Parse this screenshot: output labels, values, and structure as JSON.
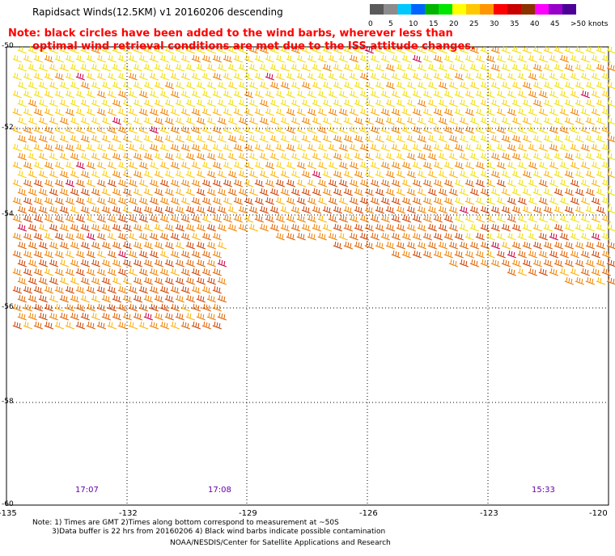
{
  "title": "Rapidsact Winds(12.5KM) v1 20160206 descending",
  "note_line1": "Note: black circles have been added to the wind barbs, wherever less than",
  "note_line2": "optimal wind retrieval conditions are met due to the ISS attitude changes.",
  "legend": {
    "unit": "knots",
    "labels": [
      "0",
      "5",
      "10",
      "15",
      "20",
      "25",
      "30",
      "35",
      "40",
      "45",
      ">50 knots"
    ],
    "colors": [
      "#5a5a5a",
      "#8c8c8c",
      "#00c8ff",
      "#0064ff",
      "#00b400",
      "#00e600",
      "#ffff00",
      "#ffc800",
      "#ff9600",
      "#ff0000",
      "#c80000",
      "#8c3200",
      "#ff00ff",
      "#9600c8",
      "#4b0096"
    ]
  },
  "latitudes": [
    "-50",
    "-52",
    "-54",
    "-56",
    "-58",
    "-60"
  ],
  "longitudes": [
    "-135",
    "-132",
    "-129",
    "-126",
    "-123",
    "-120"
  ],
  "pass_times": [
    "17:07",
    "17:08",
    "15:33"
  ],
  "footnotes": {
    "line1": "Note: 1) Times are GMT 2)Times along bottom correspond to measurement at ~50S",
    "line2": "3)Data buffer is 22 hrs from 20160206 4) Black wind barbs indicate possible contamination",
    "credit": "NOAA/NESDIS/Center for Satellite Applications and Research"
  },
  "barb_colors": [
    "#f0e000",
    "#ffd000",
    "#ffb000",
    "#f08000",
    "#e06000",
    "#d04000",
    "#cc0044"
  ]
}
